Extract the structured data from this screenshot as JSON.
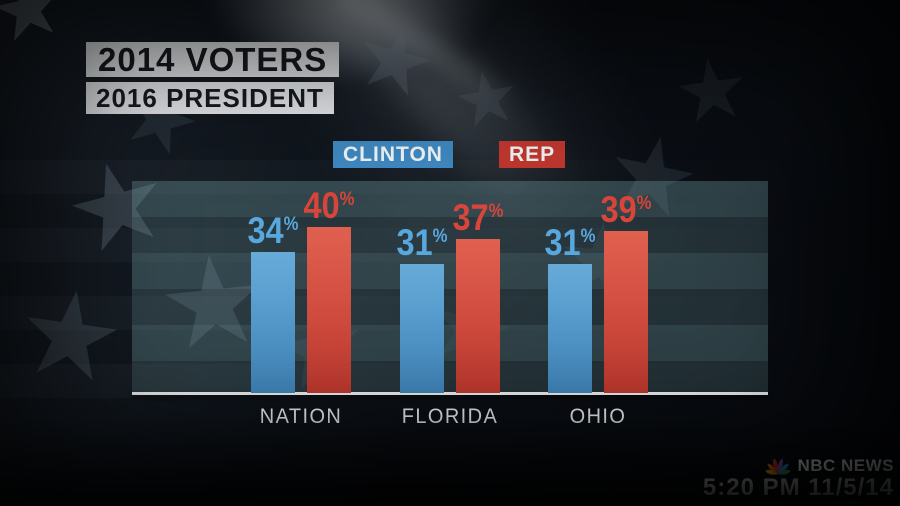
{
  "title": {
    "line1": "2014 VOTERS",
    "line2": "2016 PRESIDENT"
  },
  "legend": {
    "items": [
      {
        "label": "CLINTON",
        "color": "#3f88c0"
      },
      {
        "label": "REP",
        "color": "#c0372e"
      }
    ]
  },
  "chart_data": {
    "type": "bar",
    "title": "2014 VOTERS",
    "subtitle": "2016 PRESIDENT",
    "categories": [
      "NATION",
      "FLORIDA",
      "OHIO"
    ],
    "series": [
      {
        "name": "CLINTON",
        "values": [
          34,
          31,
          31
        ],
        "color_top": "#66abd8",
        "color_bottom": "#4187bd",
        "label_color": "#58a7dd"
      },
      {
        "name": "REP",
        "values": [
          40,
          37,
          39
        ],
        "color_top": "#e0604f",
        "color_bottom": "#c23a30",
        "label_color": "#d8453a"
      }
    ],
    "value_suffix": "%",
    "ylim": [
      0,
      51
    ],
    "grid": false,
    "legend_position": "top",
    "baseline_color": "#eef1f2"
  },
  "branding": {
    "network": "NBC NEWS",
    "timestamp": "5:20 PM 11/5/14",
    "peacock_colors": [
      "#f7b112",
      "#e8720c",
      "#d6332c",
      "#7b5aa6",
      "#2e8ddd",
      "#35a148"
    ]
  }
}
